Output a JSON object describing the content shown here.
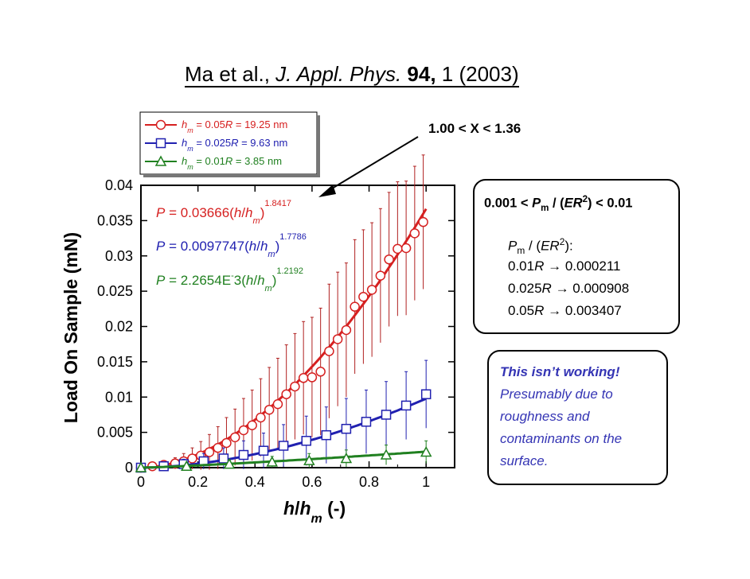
{
  "citation": {
    "authors": "Ma et al.,",
    "journal": "J. Appl. Phys.",
    "volume": "94,",
    "issue_year": "1 (2003)"
  },
  "callout": {
    "text": "1.00 < X < 1.36"
  },
  "box_criterion": {
    "prefix": "0.001 <",
    "P": "P",
    "P_sub": "m",
    "mid": "/ (",
    "ER": "ER",
    "sup": "2",
    "suffix": ") < 0.01"
  },
  "box_values": {
    "header_P": "P",
    "header_sub": "m",
    "header_rest": "/ (",
    "header_ER": "ER",
    "header_sup": "2",
    "header_end": "):",
    "rows": [
      {
        "label": "0.01",
        "R": "R",
        "arrow": "→",
        "value": "0.000211"
      },
      {
        "label": "0.025",
        "R": "R",
        "arrow": "→",
        "value": "0.000908"
      },
      {
        "label": "0.05",
        "R": "R",
        "arrow": "→",
        "value": "0.003407"
      }
    ]
  },
  "note": {
    "lines": [
      "This isn’t working!",
      "Presumably due to",
      "roughness and",
      "contaminants on the",
      "surface."
    ]
  },
  "colors": {
    "red": "#d62020",
    "blue": "#2020b0",
    "green": "#208020",
    "darkred": "#a01818"
  },
  "chart_data": {
    "type": "scatter",
    "title": "",
    "xlabel_main": "h",
    "xlabel_div": "/",
    "xlabel_h": "h",
    "xlabel_sub": "m",
    "xlabel_unit": " (-)",
    "ylabel": "Load On Sample (mN)",
    "xlim": [
      0,
      1.1
    ],
    "ylim": [
      0,
      0.04
    ],
    "xticks": [
      0,
      0.2,
      0.4,
      0.6,
      0.8,
      1
    ],
    "xtick_labels": [
      "0",
      "0.2",
      "0.4",
      "0.6",
      "0.8",
      "1"
    ],
    "yticks": [
      0,
      0.005,
      0.01,
      0.015,
      0.02,
      0.025,
      0.03,
      0.035,
      0.04
    ],
    "ytick_labels": [
      "0",
      "0.005",
      "0.01",
      "0.015",
      "0.02",
      "0.025",
      "0.03",
      "0.035",
      "0.04"
    ],
    "legend": [
      {
        "h": "h",
        "sub": "m",
        "eq": " = 0.05",
        "R": "R",
        "rest": " = 19.25 nm",
        "marker": "circle",
        "color": "#d62020"
      },
      {
        "h": "h",
        "sub": "m",
        "eq": " = 0.025",
        "R": "R",
        "rest": " = 9.63 nm",
        "marker": "square",
        "color": "#2020b0"
      },
      {
        "h": "h",
        "sub": "m",
        "eq": " = 0.01",
        "R": "R",
        "rest": " = 3.85 nm",
        "marker": "triangle",
        "color": "#208020"
      }
    ],
    "fit_labels": [
      {
        "lhs": "P",
        "eq": " = 0.03666(",
        "h1": "h",
        "slash": "/",
        "h2": "h",
        "sub": "m",
        "close": ")",
        "exp": "1.8417",
        "color": "#d62020"
      },
      {
        "lhs": "P",
        "eq": " = 0.0097747(",
        "h1": "h",
        "slash": "/",
        "h2": "h",
        "sub": "m",
        "close": ")",
        "exp": "1.7786",
        "color": "#2020b0"
      },
      {
        "lhs": "P",
        "eq": " = 2.2654E",
        "minus": "-",
        "eq2": "3(",
        "h1": "h",
        "slash": "/",
        "h2": "h",
        "sub": "m",
        "close": ")",
        "exp": "1.2192",
        "color": "#208020"
      }
    ],
    "series": [
      {
        "name": "hm = 0.05R = 19.25 nm",
        "marker": "circle",
        "color": "#d62020",
        "fit": {
          "a": 0.03666,
          "b": 1.8417
        },
        "x": [
          0.0,
          0.04,
          0.08,
          0.12,
          0.15,
          0.18,
          0.21,
          0.24,
          0.27,
          0.3,
          0.33,
          0.36,
          0.39,
          0.42,
          0.45,
          0.48,
          0.51,
          0.54,
          0.57,
          0.6,
          0.63,
          0.66,
          0.69,
          0.72,
          0.75,
          0.78,
          0.81,
          0.84,
          0.87,
          0.9,
          0.93,
          0.96,
          0.99
        ],
        "y": [
          0.0,
          0.0002,
          0.0004,
          0.0006,
          0.0009,
          0.0013,
          0.0017,
          0.0022,
          0.0028,
          0.0035,
          0.0043,
          0.0053,
          0.006,
          0.0071,
          0.0082,
          0.009,
          0.0104,
          0.0115,
          0.0127,
          0.0128,
          0.0136,
          0.0165,
          0.0182,
          0.0195,
          0.0228,
          0.0242,
          0.0252,
          0.0272,
          0.0295,
          0.031,
          0.0311,
          0.0332,
          0.0348
        ],
        "err": [
          0.0,
          0.0003,
          0.0005,
          0.0008,
          0.0011,
          0.0015,
          0.002,
          0.0025,
          0.003,
          0.0036,
          0.004,
          0.0045,
          0.005,
          0.0055,
          0.006,
          0.0065,
          0.007,
          0.0075,
          0.008,
          0.0085,
          0.009,
          0.0095,
          0.0095,
          0.0095,
          0.0095,
          0.0095,
          0.0095,
          0.0095,
          0.0095,
          0.0095,
          0.0095,
          0.0095,
          0.0095
        ]
      },
      {
        "name": "hm = 0.025R = 9.63 nm",
        "marker": "square",
        "color": "#2020b0",
        "fit": {
          "a": 0.0097747,
          "b": 1.7786
        },
        "x": [
          0.0,
          0.08,
          0.15,
          0.22,
          0.29,
          0.36,
          0.43,
          0.5,
          0.58,
          0.65,
          0.72,
          0.79,
          0.86,
          0.93,
          1.0
        ],
        "y": [
          0.0,
          0.0002,
          0.0005,
          0.0009,
          0.0013,
          0.0018,
          0.0024,
          0.0031,
          0.0038,
          0.0046,
          0.0055,
          0.0065,
          0.0075,
          0.0088,
          0.0104
        ],
        "err": [
          0.0,
          0.0004,
          0.0007,
          0.0011,
          0.0015,
          0.002,
          0.0025,
          0.003,
          0.0035,
          0.004,
          0.0043,
          0.0045,
          0.0047,
          0.0048,
          0.0048
        ]
      },
      {
        "name": "hm = 0.01R = 3.85 nm",
        "marker": "triangle",
        "color": "#208020",
        "fit": {
          "a": 0.0022654,
          "b": 1.2192
        },
        "x": [
          0.0,
          0.16,
          0.31,
          0.46,
          0.59,
          0.72,
          0.86,
          1.0
        ],
        "y": [
          0.0,
          0.0002,
          0.0005,
          0.0008,
          0.001,
          0.0013,
          0.0018,
          0.0022
        ],
        "err": [
          0.0,
          0.0004,
          0.0006,
          0.0008,
          0.001,
          0.0012,
          0.0014,
          0.0016
        ]
      }
    ]
  }
}
